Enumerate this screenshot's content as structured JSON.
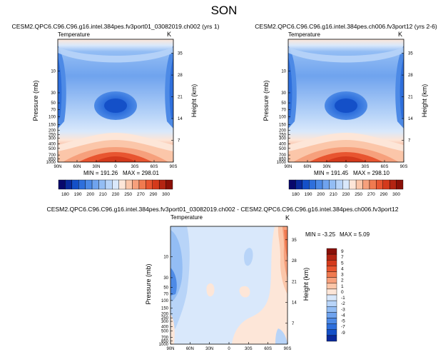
{
  "page": {
    "title": "SON"
  },
  "chart_data": [
    {
      "type": "heatmap",
      "title": "CESM2.QPC6.C96.C96.g16.intel.384pes.fv3port01_03082019.ch002 (yrs 1)",
      "variable_label": "Temperature",
      "units_label": "K",
      "xlabel": "",
      "ylabel": "Pressure (mb)",
      "ylabel_right": "Height (km)",
      "x_ticks": [
        "90N",
        "60N",
        "30N",
        "0",
        "30S",
        "60S",
        "90S"
      ],
      "y_ticks": [
        "10",
        "30",
        "50",
        "70",
        "100",
        "150",
        "200",
        "250",
        "300",
        "400",
        "500",
        "700",
        "850",
        "1000"
      ],
      "y_right_ticks": [
        "35",
        "28",
        "21",
        "14",
        "7"
      ],
      "min_label": "MIN = 191.26",
      "max_label": "MAX = 298.01",
      "min": 191.26,
      "max": 298.01
    },
    {
      "type": "heatmap",
      "title": "CESM2.QPC6.C96.C96.g16.intel.384pes.ch006.fv3port12 (yrs 2-6)",
      "variable_label": "Temperature",
      "units_label": "K",
      "xlabel": "",
      "ylabel": "Pressure (mb)",
      "ylabel_right": "Height (km)",
      "x_ticks": [
        "90N",
        "60N",
        "30N",
        "0",
        "30S",
        "60S",
        "90S"
      ],
      "y_ticks": [
        "10",
        "30",
        "50",
        "70",
        "100",
        "150",
        "200",
        "250",
        "300",
        "400",
        "500",
        "700",
        "850",
        "1000"
      ],
      "y_right_ticks": [
        "35",
        "28",
        "21",
        "14",
        "7"
      ],
      "min_label": "MIN = 191.45",
      "max_label": "MAX = 298.10",
      "min": 191.45,
      "max": 298.1
    },
    {
      "type": "heatmap",
      "title": "CESM2.QPC6.C96.C96.g16.intel.384pes.fv3port01_03082019.ch002 - CESM2.QPC6.C96.C96.g16.intel.384pes.ch006.fv3port12",
      "variable_label": "Temperature",
      "units_label": "K",
      "xlabel": "",
      "ylabel": "Pressure (mb)",
      "ylabel_right": "Height (km)",
      "x_ticks": [
        "90N",
        "60N",
        "30N",
        "0",
        "30S",
        "60S",
        "90S"
      ],
      "y_ticks": [
        "10",
        "30",
        "50",
        "70",
        "100",
        "150",
        "200",
        "250",
        "300",
        "400",
        "500",
        "700",
        "850",
        "1000"
      ],
      "y_right_ticks": [
        "35",
        "28",
        "21",
        "14",
        "7"
      ],
      "min_label": "MIN = -3.25",
      "max_label": "MAX =  5.09",
      "min": -3.25,
      "max": 5.09
    }
  ],
  "colorbar_abs": {
    "labels": [
      "180",
      "190",
      "200",
      "210",
      "230",
      "250",
      "270",
      "290",
      "300"
    ],
    "colors": [
      "#08086b",
      "#0a2a9c",
      "#1450c8",
      "#2e6fdc",
      "#4d8ae6",
      "#6fa3ee",
      "#93bdf4",
      "#b8d4f8",
      "#d9e8fb",
      "#fde6d8",
      "#fbc6a9",
      "#f6a07c",
      "#f07a50",
      "#e85530",
      "#d43a1c",
      "#b32412",
      "#8a1008"
    ]
  },
  "colorbar_diff": {
    "labels": [
      "9",
      "7",
      "5",
      "4",
      "3",
      "2",
      "1",
      "0",
      "-1",
      "-2",
      "-3",
      "-4",
      "-5",
      "-7",
      "-9"
    ],
    "colors": [
      "#8a1008",
      "#b32412",
      "#d43a1c",
      "#e85530",
      "#f07a50",
      "#f6a07c",
      "#fbc6a9",
      "#fde6d8",
      "#d9e8fb",
      "#b8d4f8",
      "#93bdf4",
      "#6fa3ee",
      "#4d8ae6",
      "#2e6fdc",
      "#1450c8",
      "#0a2a9c"
    ]
  }
}
